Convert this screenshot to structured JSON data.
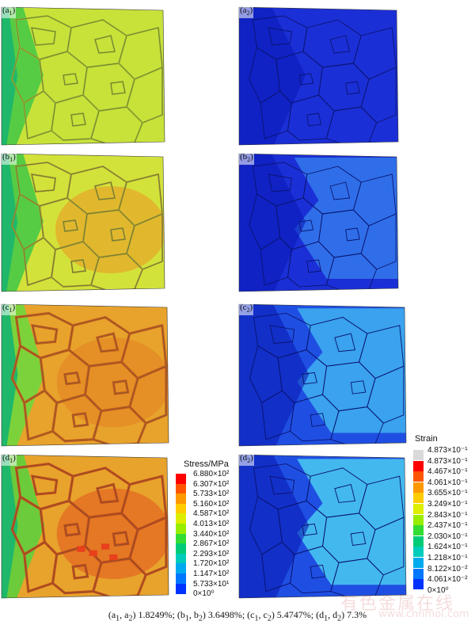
{
  "panels": [
    {
      "id": "a1",
      "label_main": "(a",
      "label_sub": "1",
      "label_end": ")",
      "type": "stress",
      "stage": 0
    },
    {
      "id": "a2",
      "label_main": "(a",
      "label_sub": "2",
      "label_end": ")",
      "type": "strain",
      "stage": 0
    },
    {
      "id": "b1",
      "label_main": "(b",
      "label_sub": "1",
      "label_end": ")",
      "type": "stress",
      "stage": 1
    },
    {
      "id": "b2",
      "label_main": "(b",
      "label_sub": "2",
      "label_end": ")",
      "type": "strain",
      "stage": 1
    },
    {
      "id": "c1",
      "label_main": "(c",
      "label_sub": "1",
      "label_end": ")",
      "type": "stress",
      "stage": 2
    },
    {
      "id": "c2",
      "label_main": "(c",
      "label_sub": "2",
      "label_end": ")",
      "type": "strain",
      "stage": 2
    },
    {
      "id": "d1",
      "label_main": "(d",
      "label_sub": "1",
      "label_end": ")",
      "type": "stress",
      "stage": 3
    },
    {
      "id": "d2",
      "label_main": "(d",
      "label_sub": "2",
      "label_end": ")",
      "type": "strain",
      "stage": 3
    }
  ],
  "stress_legend": {
    "title": "Stress/MPa",
    "ticks": [
      "6.880×10²",
      "6.307×10²",
      "5.733×10²",
      "5.160×10²",
      "4.587×10²",
      "4.013×10²",
      "3.440×10²",
      "2.867×10²",
      "2.293×10²",
      "1.720×10²",
      "1.147×10²",
      "5.733×10¹",
      "0×10⁰"
    ],
    "colors": [
      "#ff0000",
      "#ff5500",
      "#ff9900",
      "#ffcc00",
      "#ddee00",
      "#99ee00",
      "#33dd33",
      "#00cc77",
      "#00ccbb",
      "#00aaee",
      "#0077ff",
      "#0033ff"
    ]
  },
  "strain_legend": {
    "title": "Strain",
    "ticks": [
      "4.873×10⁻¹",
      "4.873×10⁻¹",
      "4.467×10⁻¹",
      "4.061×10⁻¹",
      "3.655×10⁻¹",
      "3.249×10⁻¹",
      "2.843×10⁻¹",
      "2.437×10⁻¹",
      "2.030×10⁻¹",
      "1.624×10⁻¹",
      "1.218×10⁻¹",
      "8.122×10⁻²",
      "4.061×10⁻²",
      "0×10⁰"
    ],
    "colors": [
      "#d9d9d9",
      "#ff0000",
      "#ff5500",
      "#ff9900",
      "#ffcc00",
      "#ddee00",
      "#99ee00",
      "#33dd33",
      "#00cc77",
      "#00ccbb",
      "#00aaee",
      "#0077ff",
      "#0033ff"
    ]
  },
  "caption": {
    "p1": "(a",
    "s1": "1",
    "p2": ", a",
    "s2": "2",
    "p3": ") 1.8249%; (b",
    "s3": "1",
    "p4": ", b",
    "s4": "2",
    "p5": ") 3.6498%; (c",
    "s5": "1",
    "p6": ", c",
    "s6": "2",
    "p7": ") 5.4747%; (d",
    "s7": "1",
    "p8": ", d",
    "s8": "2",
    "p9": ") 7.3%"
  },
  "watermark": {
    "text": "有色金属在线",
    "url": "www.cnnmol.com"
  }
}
